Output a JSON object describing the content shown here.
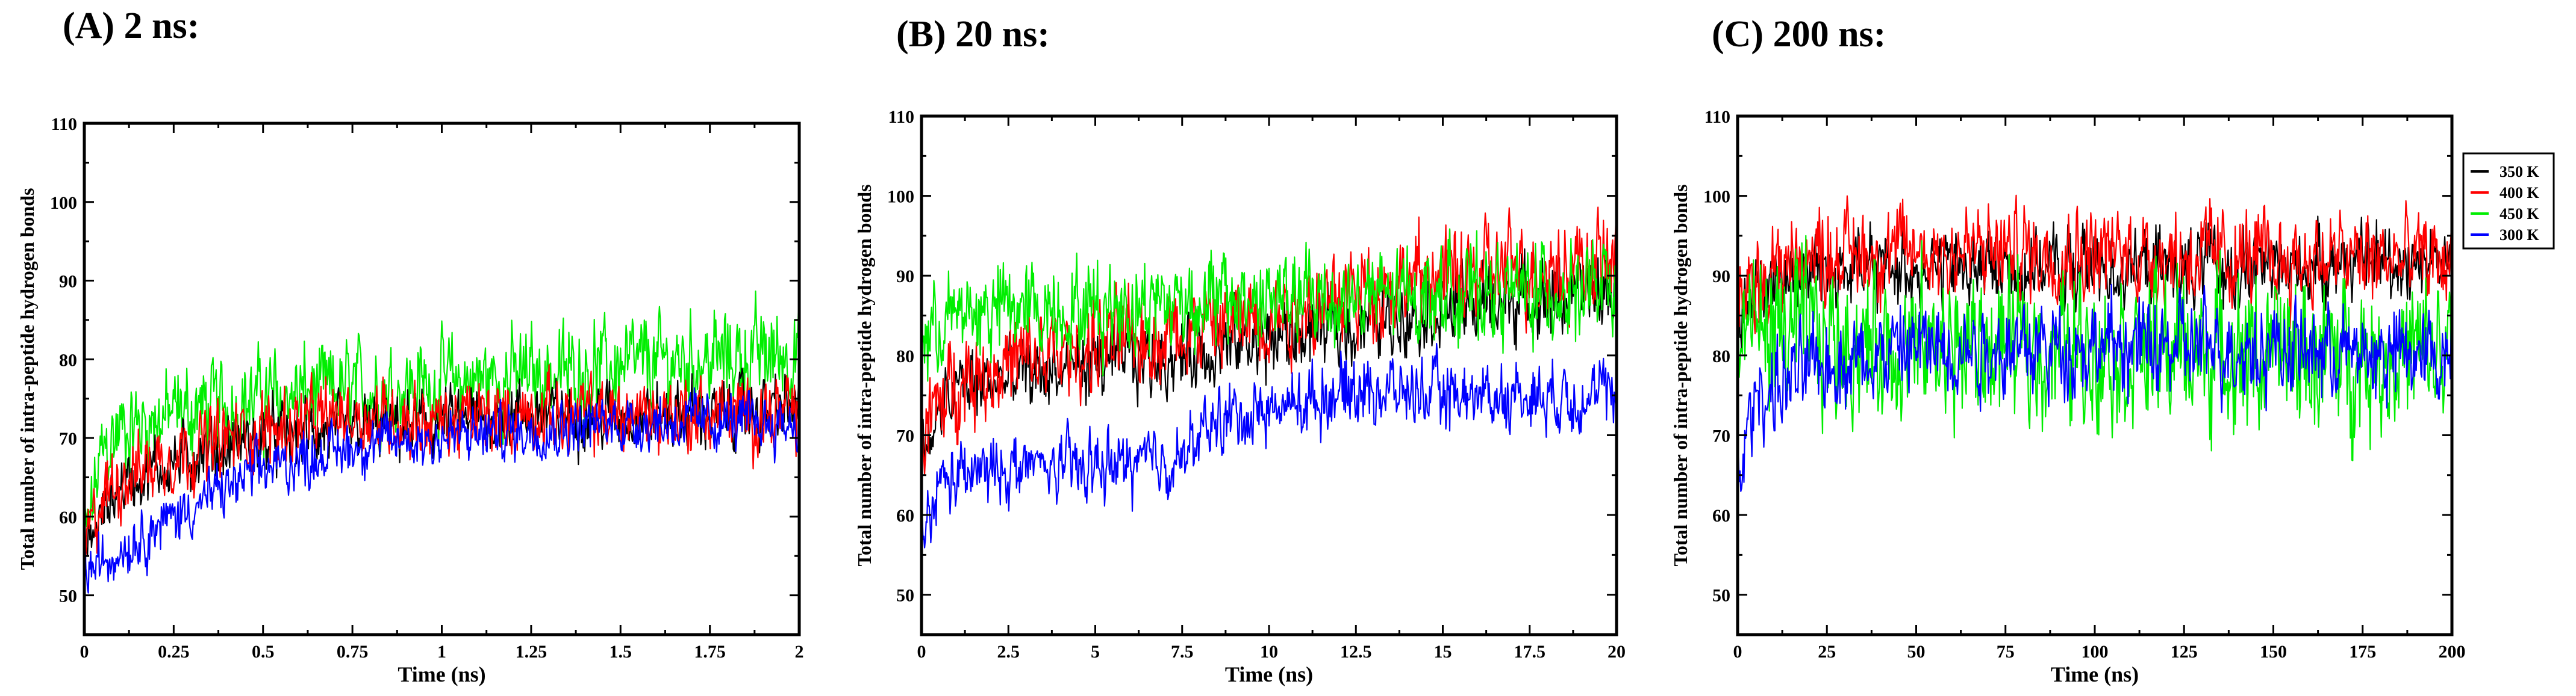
{
  "panels": [
    {
      "label": "(A) 2 ns:"
    },
    {
      "label": "(B) 20 ns:"
    },
    {
      "label": "(C) 200 ns:"
    }
  ],
  "series_colors": {
    "350 K": "#000000",
    "400 K": "#ff0000",
    "450 K": "#00ee00",
    "300 K": "#0000ff"
  },
  "chart_data": [
    {
      "type": "line",
      "title": "(A) 2 ns:",
      "xlabel": "Time (ns)",
      "ylabel": "Total number of intra-peptide hydrogen bonds",
      "xlim": [
        0,
        2
      ],
      "ylim": [
        45,
        110
      ],
      "xticks": [
        0,
        0.25,
        0.5,
        0.75,
        1,
        1.25,
        1.5,
        1.75,
        2
      ],
      "xtick_labels": [
        "0",
        "0.25",
        "0.5",
        "0.75",
        "1",
        "1.25",
        "1.5",
        "1.75",
        "2"
      ],
      "yticks": [
        50,
        60,
        70,
        80,
        90,
        100,
        110
      ],
      "ytick_labels": [
        "50",
        "60",
        "70",
        "80",
        "90",
        "100",
        "110"
      ],
      "legend": [],
      "series": [
        {
          "name": "450 K",
          "color": "#00ee00",
          "x": [
            0,
            0.05,
            0.1,
            0.25,
            0.5,
            0.75,
            1.0,
            1.25,
            1.5,
            1.75,
            2.0
          ],
          "values": [
            56,
            68,
            71,
            73,
            75,
            76,
            77,
            78,
            79,
            80,
            81
          ],
          "amplitude": 5
        },
        {
          "name": "350 K",
          "color": "#000000",
          "x": [
            0,
            0.05,
            0.1,
            0.25,
            0.5,
            0.75,
            1.0,
            1.25,
            1.5,
            1.75,
            2.0
          ],
          "values": [
            55,
            60,
            64,
            67,
            70,
            71,
            72,
            73,
            73,
            73,
            74
          ],
          "amplitude": 3.5
        },
        {
          "name": "400 K",
          "color": "#ff0000",
          "x": [
            0,
            0.05,
            0.1,
            0.25,
            0.5,
            0.75,
            1.0,
            1.25,
            1.5,
            1.75,
            2.0
          ],
          "values": [
            56,
            62,
            65,
            68,
            71,
            73,
            72,
            73,
            73,
            73,
            73
          ],
          "amplitude": 4
        },
        {
          "name": "300 K",
          "color": "#0000ff",
          "x": [
            0,
            0.05,
            0.1,
            0.25,
            0.5,
            0.75,
            1.0,
            1.25,
            1.5,
            1.75,
            2.0
          ],
          "values": [
            53,
            54,
            56,
            60,
            66,
            69,
            70,
            71,
            72,
            72,
            72
          ],
          "amplitude": 3
        }
      ]
    },
    {
      "type": "line",
      "title": "(B) 20 ns:",
      "xlabel": "Time (ns)",
      "ylabel": "Total number of intra-peptide hydrogen bonds",
      "xlim": [
        0,
        20
      ],
      "ylim": [
        45,
        110
      ],
      "xticks": [
        0,
        2.5,
        5,
        7.5,
        10,
        12.5,
        15,
        17.5,
        20
      ],
      "xtick_labels": [
        "0",
        "2.5",
        "5",
        "7.5",
        "10",
        "12.5",
        "15",
        "17.5",
        "20"
      ],
      "yticks": [
        50,
        60,
        70,
        80,
        90,
        100,
        110
      ],
      "ytick_labels": [
        "50",
        "60",
        "70",
        "80",
        "90",
        "100",
        "110"
      ],
      "legend": [],
      "series": [
        {
          "name": "350 K",
          "color": "#000000",
          "x": [
            0,
            1,
            2.5,
            5,
            7.5,
            10,
            12.5,
            15,
            17.5,
            20
          ],
          "values": [
            68,
            76,
            77,
            79,
            80,
            82,
            84,
            86,
            87,
            88
          ],
          "amplitude": 4
        },
        {
          "name": "400 K",
          "color": "#ff0000",
          "x": [
            0,
            1,
            2.5,
            5,
            7.5,
            10,
            12.5,
            15,
            17.5,
            20
          ],
          "values": [
            70,
            77,
            79,
            81,
            83,
            85,
            88,
            90,
            91,
            92
          ],
          "amplitude": 5
        },
        {
          "name": "450 K",
          "color": "#00ee00",
          "x": [
            0,
            1,
            2.5,
            5,
            7.5,
            10,
            12.5,
            15,
            17.5,
            20
          ],
          "values": [
            82,
            85,
            86,
            86,
            87,
            87,
            87,
            88,
            88,
            88
          ],
          "amplitude": 5
        },
        {
          "name": "300 K",
          "color": "#0000ff",
          "x": [
            0,
            0.5,
            2.5,
            5,
            7.5,
            8.5,
            10,
            12.5,
            15,
            17.5,
            20
          ],
          "values": [
            55,
            64,
            66,
            66,
            67,
            72,
            73,
            76,
            75,
            75,
            75
          ],
          "amplitude": 3.5
        }
      ]
    },
    {
      "type": "line",
      "title": "(C) 200 ns:",
      "xlabel": "Time (ns)",
      "ylabel": "Total number of intra-peptide hydrogen bonds",
      "xlim": [
        0,
        200
      ],
      "ylim": [
        45,
        110
      ],
      "xticks": [
        0,
        25,
        50,
        75,
        100,
        125,
        150,
        175,
        200
      ],
      "xtick_labels": [
        "0",
        "25",
        "50",
        "75",
        "100",
        "125",
        "150",
        "175",
        "200"
      ],
      "yticks": [
        50,
        60,
        70,
        80,
        90,
        100,
        110
      ],
      "ytick_labels": [
        "50",
        "60",
        "70",
        "80",
        "90",
        "100",
        "110"
      ],
      "legend": [
        "350 K",
        "400 K",
        "450 K",
        "300 K"
      ],
      "legend_position": "outside-right-top",
      "series": [
        {
          "name": "350 K",
          "color": "#000000",
          "x": [
            0,
            10,
            25,
            50,
            100,
            150,
            175,
            200
          ],
          "values": [
            85,
            90,
            91,
            91,
            91,
            91,
            92,
            92
          ],
          "amplitude": 4
        },
        {
          "name": "400 K",
          "color": "#ff0000",
          "x": [
            0,
            10,
            25,
            50,
            100,
            150,
            175,
            200
          ],
          "values": [
            86,
            91,
            93,
            93,
            93,
            92,
            92,
            92
          ],
          "amplitude": 5
        },
        {
          "name": "450 K",
          "color": "#00ee00",
          "x": [
            0,
            10,
            25,
            50,
            100,
            150,
            175,
            200
          ],
          "values": [
            84,
            83,
            82,
            81,
            81,
            80,
            80,
            80
          ],
          "amplitude": 8
        },
        {
          "name": "300 K",
          "color": "#0000ff",
          "x": [
            0,
            5,
            25,
            50,
            100,
            150,
            175,
            200
          ],
          "values": [
            64,
            75,
            79,
            81,
            81,
            81,
            80,
            80
          ],
          "amplitude": 5
        }
      ]
    }
  ]
}
